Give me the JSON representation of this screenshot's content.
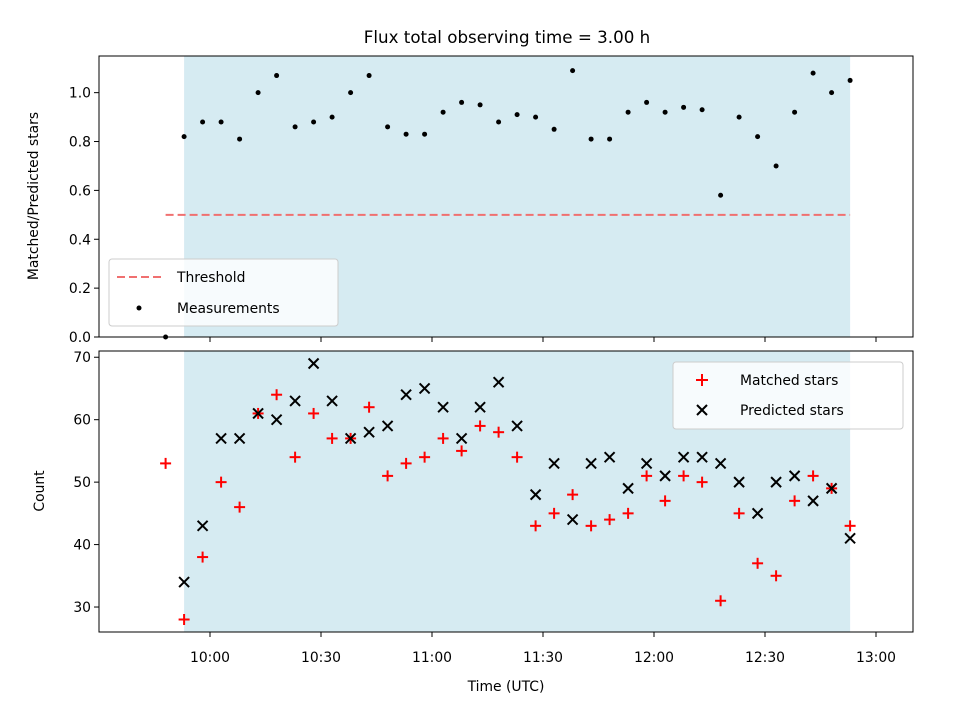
{
  "chart_data": [
    {
      "type": "scatter",
      "panel": "top",
      "title": "Flux total observing time = 3.00 h",
      "ylabel": "Matched/Predicted stars",
      "ylim": [
        0,
        1.15
      ],
      "yticks": [
        0.0,
        0.2,
        0.4,
        0.6,
        0.8,
        1.0
      ],
      "ytick_labels": [
        "0.0",
        "0.2",
        "0.4",
        "0.6",
        "0.8",
        "1.0"
      ],
      "xlim_min": [
        570,
        790
      ],
      "shaded_region_min": [
        593,
        773
      ],
      "threshold": {
        "name": "Threshold",
        "value": 0.5,
        "x_range_min": [
          588,
          773
        ],
        "color": "#f07070"
      },
      "series": [
        {
          "name": "Measurements",
          "color": "#000000",
          "x_min": [
            588,
            593,
            598,
            603,
            608,
            613,
            618,
            623,
            628,
            633,
            638,
            643,
            648,
            653,
            658,
            663,
            668,
            673,
            678,
            683,
            688,
            693,
            698,
            703,
            708,
            713,
            718,
            723,
            728,
            733,
            738,
            743,
            748,
            753,
            758,
            763,
            768,
            773
          ],
          "y": [
            0.0,
            0.82,
            0.88,
            0.88,
            0.81,
            1.0,
            1.07,
            0.86,
            0.88,
            0.9,
            1.0,
            1.07,
            0.86,
            0.83,
            0.83,
            0.92,
            0.96,
            0.95,
            0.88,
            0.91,
            0.9,
            0.85,
            1.09,
            0.81,
            0.81,
            0.92,
            0.96,
            0.92,
            0.94,
            0.93,
            0.58,
            0.9,
            0.82,
            0.7,
            0.92,
            1.08,
            1.0,
            1.05
          ]
        }
      ],
      "legend": {
        "position": "lower-left",
        "entries": [
          "Threshold",
          "Measurements"
        ]
      }
    },
    {
      "type": "scatter",
      "panel": "bottom",
      "xlabel": "Time (UTC)",
      "ylabel": "Count",
      "ylim": [
        26,
        71
      ],
      "yticks": [
        30,
        40,
        50,
        60,
        70
      ],
      "ytick_labels": [
        "30",
        "40",
        "50",
        "60",
        "70"
      ],
      "xlim_min": [
        570,
        790
      ],
      "xticks_min": [
        600,
        630,
        660,
        690,
        720,
        750,
        780
      ],
      "xtick_labels": [
        "10:00",
        "10:30",
        "11:00",
        "11:30",
        "12:00",
        "12:30",
        "13:00"
      ],
      "shaded_region_min": [
        593,
        773
      ],
      "series": [
        {
          "name": "Matched stars",
          "marker": "plus",
          "color": "#ff0000",
          "x_min": [
            588,
            593,
            598,
            603,
            608,
            613,
            618,
            623,
            628,
            633,
            638,
            643,
            648,
            653,
            658,
            663,
            668,
            673,
            678,
            683,
            688,
            693,
            698,
            703,
            708,
            713,
            718,
            723,
            728,
            733,
            738,
            743,
            748,
            753,
            758,
            763,
            768,
            773
          ],
          "values": [
            53,
            28,
            38,
            50,
            46,
            61,
            64,
            54,
            61,
            57,
            57,
            62,
            51,
            53,
            54,
            57,
            55,
            59,
            58,
            54,
            43,
            45,
            48,
            43,
            44,
            45,
            51,
            47,
            51,
            50,
            31,
            45,
            37,
            35,
            47,
            51,
            49,
            43
          ]
        },
        {
          "name": "Predicted stars",
          "marker": "x",
          "color": "#000000",
          "x_min": [
            593,
            598,
            603,
            608,
            613,
            618,
            623,
            628,
            633,
            638,
            643,
            648,
            653,
            658,
            663,
            668,
            673,
            678,
            683,
            688,
            693,
            698,
            703,
            708,
            713,
            718,
            723,
            728,
            733,
            738,
            743,
            748,
            753,
            758,
            763,
            768,
            773
          ],
          "values": [
            34,
            43,
            57,
            57,
            61,
            60,
            63,
            69,
            63,
            57,
            58,
            59,
            64,
            65,
            62,
            57,
            62,
            66,
            59,
            48,
            53,
            44,
            53,
            54,
            49,
            53,
            51,
            54,
            54,
            53,
            50,
            45,
            50,
            51,
            47,
            49,
            41
          ]
        }
      ],
      "legend": {
        "position": "upper-right",
        "entries": [
          "Matched stars",
          "Predicted stars"
        ]
      }
    }
  ]
}
